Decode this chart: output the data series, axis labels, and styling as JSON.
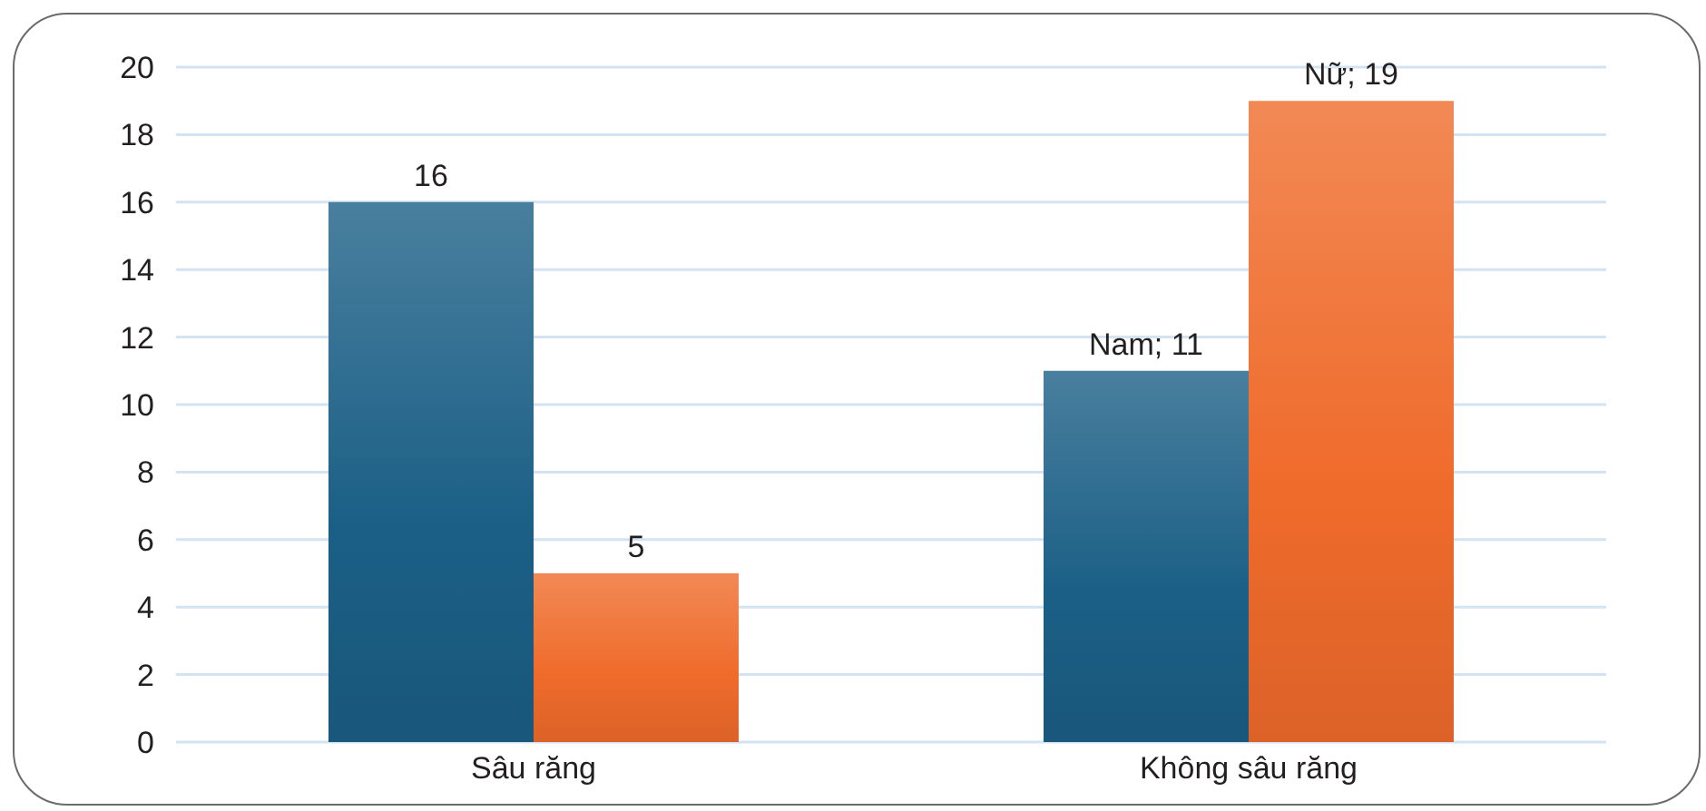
{
  "chart_data": {
    "type": "bar",
    "categories": [
      "Sâu răng",
      "Không sâu răng"
    ],
    "series": [
      {
        "color": "#1b5f86",
        "values": [
          16,
          11
        ],
        "value_labels": [
          "16",
          "Nam; 11"
        ]
      },
      {
        "color": "#ef6b2b",
        "values": [
          5,
          19
        ],
        "value_labels": [
          "5",
          "Nữ; 19"
        ]
      }
    ],
    "ylim": [
      0,
      20
    ],
    "yticks": [
      0,
      2,
      4,
      6,
      8,
      10,
      12,
      14,
      16,
      18,
      20
    ],
    "grid": "y"
  }
}
